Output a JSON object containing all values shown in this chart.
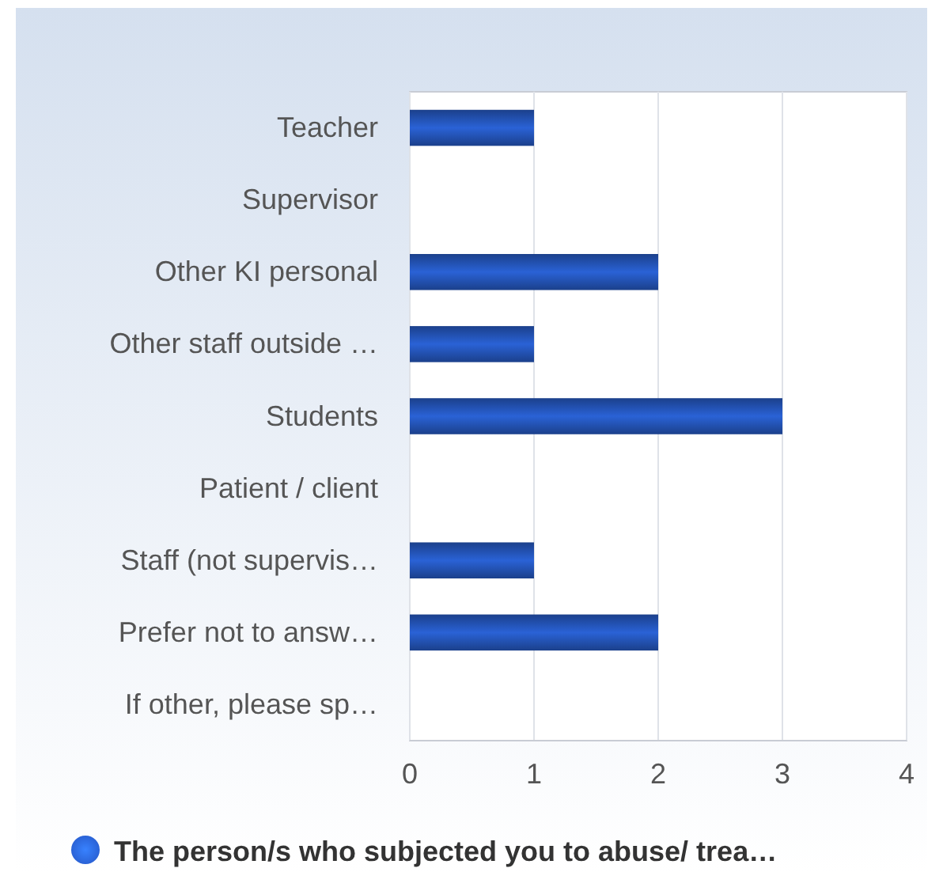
{
  "chart_data": {
    "type": "bar",
    "orientation": "horizontal",
    "categories": [
      "Teacher",
      "Supervisor",
      "Other KI personal",
      "Other staff outside …",
      "Students",
      "Patient / client",
      "Staff (not supervis…",
      "Prefer not to answ…",
      "If other, please sp…"
    ],
    "series": [
      {
        "name": "The person/s who subjected you to abuse/ trea…",
        "color": "#2a62d6",
        "values": [
          1,
          0,
          2,
          1,
          3,
          0,
          1,
          2,
          0
        ]
      }
    ],
    "xlim": [
      0,
      4
    ],
    "xticks": [
      0,
      1,
      2,
      3,
      4
    ],
    "grid": "x",
    "legend": "bottom"
  }
}
